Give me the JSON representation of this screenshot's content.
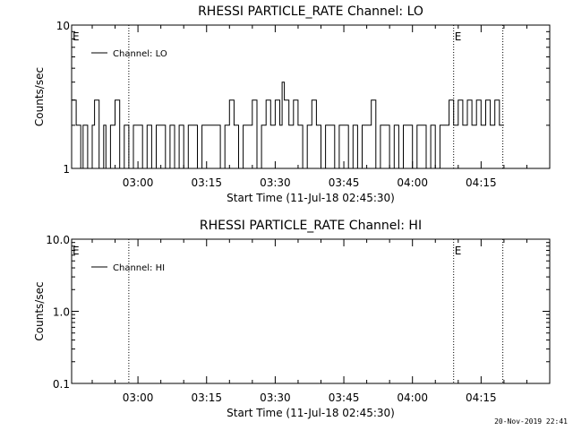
{
  "footer": {
    "timestamp": "20-Nov-2019 22:41"
  },
  "chart_data": [
    {
      "type": "line",
      "title": "RHESSI PARTICLE_RATE Channel: LO",
      "xlabel": "Start Time (11-Jul-18 02:45:30)",
      "ylabel": "Counts/sec",
      "yscale": "log",
      "ylim": [
        1,
        10
      ],
      "xlim": [
        "02:45:30",
        "04:30:00"
      ],
      "y_ticks": [
        "1",
        "10"
      ],
      "x_ticks": [
        "03:00",
        "03:15",
        "03:30",
        "03:45",
        "04:00",
        "04:15"
      ],
      "event_markers": {
        "times": [
          "02:45:30",
          "04:09:00"
        ],
        "label": "E"
      },
      "dotted_lines": [
        "02:58:00",
        "04:09:00",
        "04:19:45"
      ],
      "legend": {
        "position": "top-left",
        "entries": [
          "Channel: LO"
        ]
      },
      "series": [
        {
          "name": "Channel: LO",
          "x": [
            "02:45:30",
            "02:46:30",
            "02:47:30",
            "02:48:00",
            "02:49:00",
            "02:50:00",
            "02:50:30",
            "02:51:30",
            "02:52:30",
            "02:53:00",
            "02:54:00",
            "02:55:00",
            "02:56:00",
            "02:57:00",
            "02:58:00",
            "02:59:00",
            "03:00:00",
            "03:01:00",
            "03:02:00",
            "03:03:00",
            "03:04:00",
            "03:05:00",
            "03:06:00",
            "03:07:00",
            "03:08:00",
            "03:09:00",
            "03:10:00",
            "03:11:00",
            "03:12:00",
            "03:13:00",
            "03:14:00",
            "03:15:00",
            "03:16:00",
            "03:17:00",
            "03:18:00",
            "03:19:00",
            "03:20:00",
            "03:21:00",
            "03:22:00",
            "03:23:00",
            "03:24:00",
            "03:25:00",
            "03:26:00",
            "03:27:00",
            "03:28:00",
            "03:29:00",
            "03:30:00",
            "03:31:00",
            "03:31:30",
            "03:32:00",
            "03:33:00",
            "03:34:00",
            "03:35:00",
            "03:36:00",
            "03:37:00",
            "03:38:00",
            "03:39:00",
            "03:40:00",
            "03:41:00",
            "03:42:00",
            "03:43:00",
            "03:44:00",
            "03:45:00",
            "03:46:00",
            "03:47:00",
            "03:48:00",
            "03:49:00",
            "03:50:00",
            "03:51:00",
            "03:52:00",
            "03:53:00",
            "03:54:00",
            "03:55:00",
            "03:56:00",
            "03:57:00",
            "03:58:00",
            "03:59:00",
            "04:00:00",
            "04:01:00",
            "04:02:00",
            "04:03:00",
            "04:04:00",
            "04:05:00",
            "04:06:00",
            "04:07:00",
            "04:08:00",
            "04:09:00",
            "04:10:00",
            "04:11:00",
            "04:12:00",
            "04:13:00",
            "04:14:00",
            "04:15:00",
            "04:16:00",
            "04:17:00",
            "04:18:00",
            "04:19:00",
            "04:20:00"
          ],
          "values": [
            3,
            2,
            1,
            2,
            1,
            2,
            3,
            1,
            2,
            1,
            2,
            3,
            1,
            2,
            1,
            2,
            2,
            1,
            2,
            1,
            2,
            2,
            1,
            2,
            1,
            2,
            1,
            2,
            2,
            1,
            2,
            2,
            2,
            2,
            1,
            2,
            3,
            2,
            1,
            2,
            2,
            3,
            1,
            2,
            3,
            2,
            3,
            2,
            4,
            3,
            2,
            3,
            2,
            1,
            2,
            3,
            2,
            1,
            2,
            2,
            1,
            2,
            2,
            1,
            2,
            1,
            2,
            2,
            3,
            1,
            2,
            2,
            1,
            2,
            1,
            2,
            2,
            1,
            2,
            2,
            1,
            2,
            1,
            2,
            2,
            3,
            2,
            3,
            2,
            3,
            2,
            3,
            2,
            3,
            2,
            3,
            2,
            2
          ]
        }
      ]
    },
    {
      "type": "line",
      "title": "RHESSI PARTICLE_RATE Channel: HI",
      "xlabel": "Start Time (11-Jul-18 02:45:30)",
      "ylabel": "Counts/sec",
      "yscale": "log",
      "ylim": [
        0.1,
        10
      ],
      "xlim": [
        "02:45:30",
        "04:30:00"
      ],
      "y_ticks": [
        "0.1",
        "1.0",
        "10.0"
      ],
      "x_ticks": [
        "03:00",
        "03:15",
        "03:30",
        "03:45",
        "04:00",
        "04:15"
      ],
      "event_markers": {
        "times": [
          "02:45:30",
          "04:09:00"
        ],
        "label": "E"
      },
      "dotted_lines": [
        "02:58:00",
        "04:09:00",
        "04:19:45"
      ],
      "legend": {
        "position": "top-left",
        "entries": [
          "Channel: HI"
        ]
      },
      "series": [
        {
          "name": "Channel: HI",
          "x": [],
          "values": []
        }
      ]
    }
  ]
}
